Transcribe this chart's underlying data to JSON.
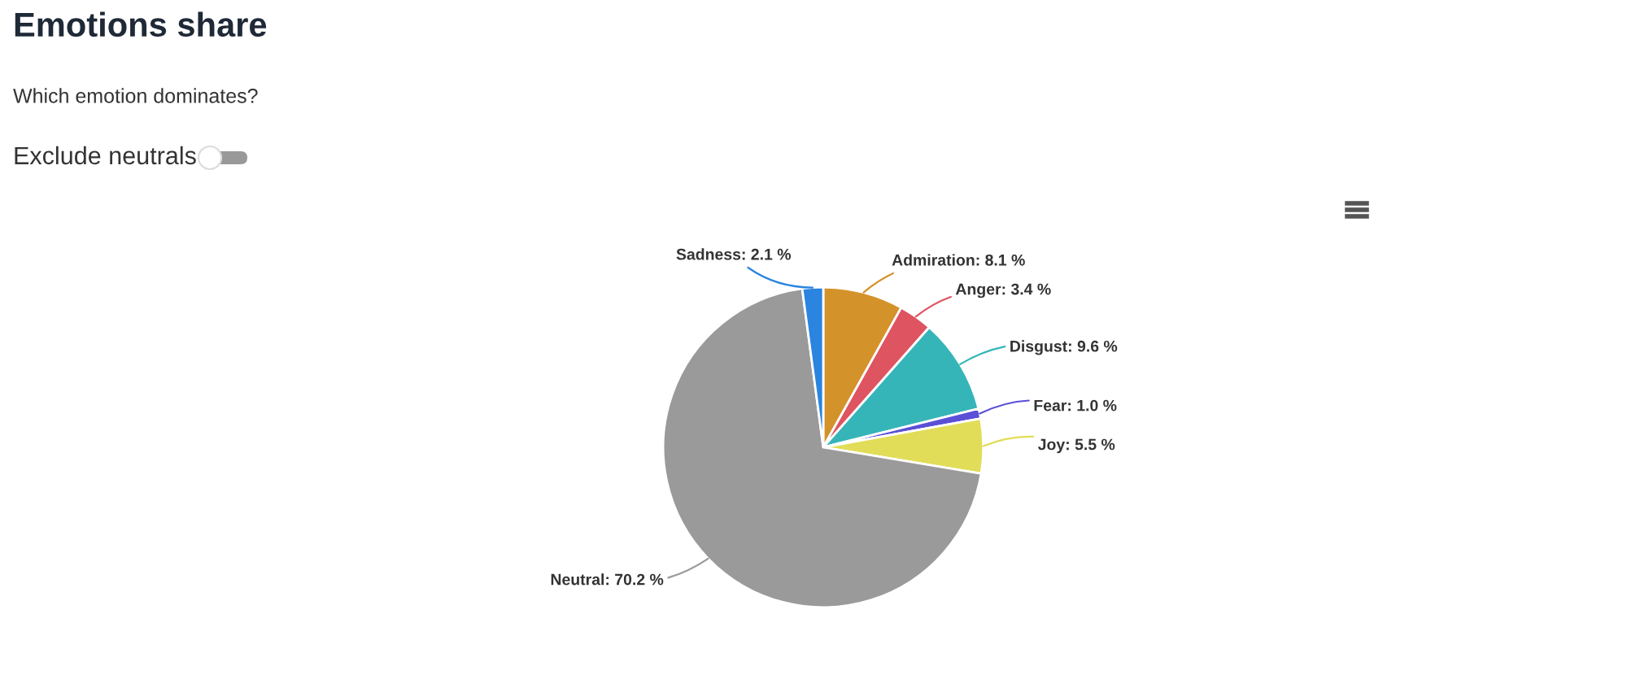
{
  "chart_data": {
    "type": "pie",
    "title": "Emotions share",
    "subtitle": "Which emotion dominates?",
    "annotations": [
      "Exclude neutrals"
    ],
    "categories": [
      "Admiration",
      "Anger",
      "Disgust",
      "Fear",
      "Joy",
      "Neutral",
      "Sadness"
    ],
    "values": [
      8.1,
      3.4,
      9.6,
      1.0,
      5.5,
      70.2,
      2.1
    ],
    "value_labels": [
      "8.1 %",
      "3.4 %",
      "9.6 %",
      "1.0 %",
      "5.5 %",
      "70.2 %",
      "2.1 %"
    ],
    "colors": [
      "#d4922a",
      "#de5461",
      "#36b5b8",
      "#5a4fd6",
      "#e2dd58",
      "#9a9a9a",
      "#2a84e0"
    ]
  }
}
